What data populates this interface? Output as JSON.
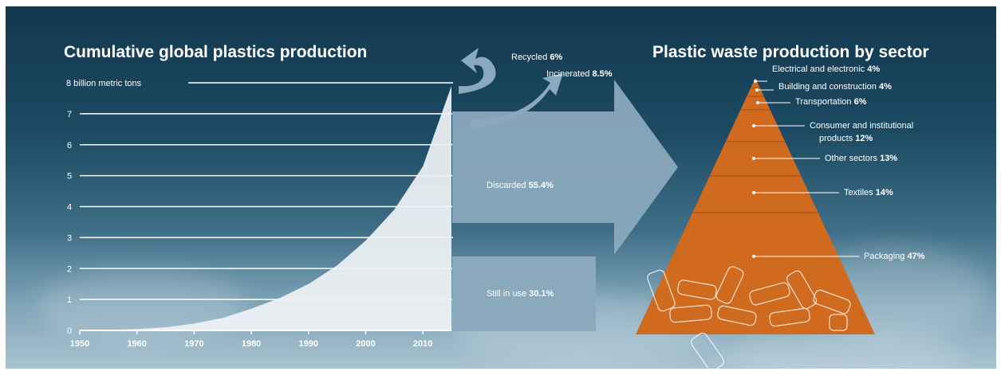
{
  "colors": {
    "area": "#eef2f5",
    "flow": "#8aa9bd",
    "pyramid": "#cf6a1f",
    "pyramid_bottom": "#c85e14",
    "gridline": "#ffffff"
  },
  "chart_data": [
    {
      "type": "area",
      "title": "Cumulative global plastics production",
      "ylabel": "8 billion metric tons",
      "xlim": [
        1950,
        2015
      ],
      "ylim": [
        0,
        8
      ],
      "xticks": [
        1950,
        1960,
        1970,
        1980,
        1990,
        2000,
        2010
      ],
      "yticks": [
        "0",
        "1",
        "2",
        "3",
        "4",
        "5",
        "6",
        "7"
      ],
      "grid": true,
      "x": [
        1950,
        1955,
        1960,
        1965,
        1970,
        1975,
        1980,
        1985,
        1990,
        1995,
        2000,
        2005,
        2010,
        2015
      ],
      "y": [
        0,
        0.01,
        0.04,
        0.1,
        0.22,
        0.4,
        0.7,
        1.05,
        1.5,
        2.1,
        2.9,
        3.9,
        5.3,
        7.9
      ],
      "flows": [
        {
          "label": "Recycled",
          "value_label": "6%",
          "value": 6
        },
        {
          "label": "Incinerated",
          "value_label": "8.5%",
          "value": 8.5
        },
        {
          "label": "Discarded",
          "value_label": "55.4%",
          "value": 55.4
        },
        {
          "label": "Still in use",
          "value_label": "30.1%",
          "value": 30.1
        }
      ]
    },
    {
      "type": "pyramid",
      "title": "Plastic waste production by sector",
      "sectors": [
        {
          "label": "Electrical and electronic",
          "value_label": "4%",
          "value": 4
        },
        {
          "label": "Building and construction",
          "value_label": "4%",
          "value": 4
        },
        {
          "label": "Transportation",
          "value_label": "6%",
          "value": 6
        },
        {
          "label": "Consumer and institutional products",
          "line1": "Consumer and institutional",
          "line2": "products",
          "value_label": "12%",
          "value": 12
        },
        {
          "label": "Other sectors",
          "value_label": "13%",
          "value": 13
        },
        {
          "label": "Textiles",
          "value_label": "14%",
          "value": 14
        },
        {
          "label": "Packaging",
          "value_label": "47%",
          "value": 47
        }
      ]
    }
  ]
}
